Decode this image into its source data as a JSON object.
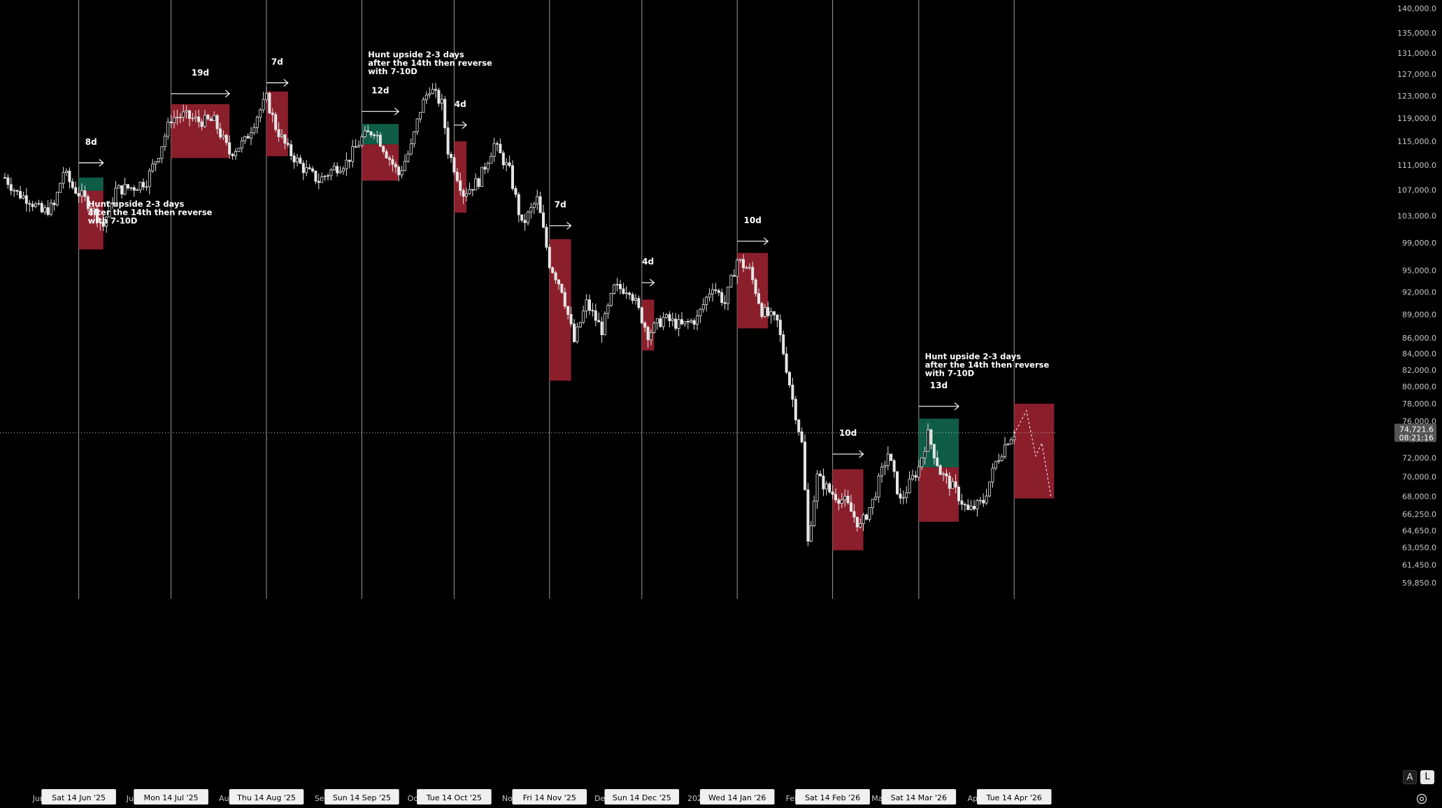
{
  "chart_data": {
    "type": "candlestick",
    "title": "",
    "xlabel": "",
    "ylabel": "",
    "x_start": "2025-05-21",
    "x_end": "2026-04-30",
    "ylim": [
      59850,
      140000
    ],
    "y_scale": "log",
    "y_ticks": [
      59850,
      61450,
      63050,
      64650,
      66250,
      68000,
      70000,
      72000,
      74000,
      76000,
      78000,
      80000,
      82000,
      84000,
      86000,
      89000,
      92000,
      95000,
      99000,
      103000,
      107000,
      111000,
      115000,
      119000,
      123000,
      127000,
      131000,
      135000,
      140000
    ],
    "y_tick_labels": [
      "59,850.0",
      "61,450.0",
      "63,050.0",
      "64,650.0",
      "66,250.0",
      "68,000.0",
      "70,000.0",
      "72,000.0",
      "74,000.0",
      "76,000.0",
      "78,000.0",
      "80,000.0",
      "82,000.0",
      "84,000.0",
      "86,000.0",
      "89,000.0",
      "92,000.0",
      "95,000.0",
      "99,000.0",
      "103,000.0",
      "107,000.0",
      "111,000.0",
      "115,000.0",
      "119,000.0",
      "123,000.0",
      "127,000.0",
      "131,000.0",
      "135,000.0",
      "140,000.0"
    ],
    "x_month_ticks": [
      {
        "date": "2025-06-01",
        "label": "Jun"
      },
      {
        "date": "2025-07-01",
        "label": "Jul"
      },
      {
        "date": "2025-08-01",
        "label": "Aug"
      },
      {
        "date": "2025-09-01",
        "label": "Sep"
      },
      {
        "date": "2025-10-01",
        "label": "Oct"
      },
      {
        "date": "2025-11-01",
        "label": "Nov"
      },
      {
        "date": "2025-12-01",
        "label": "Dec"
      },
      {
        "date": "2026-01-01",
        "label": "2026"
      },
      {
        "date": "2026-02-01",
        "label": "Feb"
      },
      {
        "date": "2026-03-01",
        "label": "Mar"
      },
      {
        "date": "2026-04-01",
        "label": "Apr"
      }
    ],
    "x_date_markers": [
      {
        "date": "2025-06-14",
        "label": "Sat 14 Jun '25"
      },
      {
        "date": "2025-07-14",
        "label": "Mon 14 Jul '25"
      },
      {
        "date": "2025-08-14",
        "label": "Thu 14 Aug '25"
      },
      {
        "date": "2025-09-14",
        "label": "Sun 14 Sep '25"
      },
      {
        "date": "2025-10-14",
        "label": "Tue 14 Oct '25"
      },
      {
        "date": "2025-11-14",
        "label": "Fri 14 Nov '25"
      },
      {
        "date": "2025-12-14",
        "label": "Sun 14 Dec '25"
      },
      {
        "date": "2026-01-14",
        "label": "Wed 14 Jan '26"
      },
      {
        "date": "2026-02-14",
        "label": "Sat 14 Feb '26"
      },
      {
        "date": "2026-03-14",
        "label": "Sat 14 Mar '26"
      },
      {
        "date": "2026-04-14",
        "label": "Tue 14 Apr '26"
      }
    ],
    "current_price": {
      "value": 74721.6,
      "label": "74,721.6",
      "countdown": "08:21:16"
    },
    "zones": [
      {
        "start": "2025-06-14",
        "end": "2025-06-22",
        "green": [
          106900,
          109000
        ],
        "red": [
          98000,
          106900
        ],
        "duration_label": "8d",
        "arrow_y": 111400
      },
      {
        "start": "2025-07-14",
        "end": "2025-08-02",
        "green": null,
        "red": [
          112200,
          121500
        ],
        "duration_label": "19d",
        "arrow_y": 123400
      },
      {
        "start": "2025-08-14",
        "end": "2025-08-21",
        "green": null,
        "red": [
          112500,
          123800
        ],
        "duration_label": "7d",
        "arrow_y": 125400
      },
      {
        "start": "2025-09-14",
        "end": "2025-09-26",
        "green": [
          114500,
          118000
        ],
        "red": [
          108500,
          114500
        ],
        "duration_label": "12d",
        "arrow_y": 120200
      },
      {
        "start": "2025-10-14",
        "end": "2025-10-18",
        "green": null,
        "red": [
          103500,
          115000
        ],
        "duration_label": "4d",
        "arrow_y": 117800
      },
      {
        "start": "2025-11-14",
        "end": "2025-11-21",
        "green": null,
        "red": [
          80700,
          99500
        ],
        "duration_label": "7d",
        "arrow_y": 101500
      },
      {
        "start": "2025-12-14",
        "end": "2025-12-18",
        "green": null,
        "red": [
          84400,
          91000
        ],
        "duration_label": "4d",
        "arrow_y": 93300
      },
      {
        "start": "2026-01-14",
        "end": "2026-01-24",
        "green": null,
        "red": [
          87200,
          97500
        ],
        "duration_label": "10d",
        "arrow_y": 99200
      },
      {
        "start": "2026-02-14",
        "end": "2026-02-24",
        "green": null,
        "red": [
          62800,
          70800
        ],
        "duration_label": "10d",
        "arrow_y": 72400
      },
      {
        "start": "2026-03-14",
        "end": "2026-03-27",
        "green": [
          71000,
          76300
        ],
        "red": [
          65500,
          71000
        ],
        "duration_label": "13d",
        "arrow_y": 77700
      },
      {
        "start": "2026-04-14",
        "end": "2026-04-27",
        "green": null,
        "red": [
          67800,
          78000
        ],
        "duration_label": "",
        "arrow_y": null
      }
    ],
    "annotations": [
      {
        "lines": [
          "Hunt upside 2-3 days",
          "after the 14th then reverse",
          "with 7-10D"
        ],
        "date": "2025-06-17",
        "y": 104400
      },
      {
        "lines": [
          "Hunt upside 2-3 days",
          "after the 14th then reverse",
          "with 7-10D"
        ],
        "date": "2025-09-16",
        "y": 130200
      },
      {
        "lines": [
          "Hunt upside 2-3 days",
          "after the 14th then reverse",
          "with 7-10D"
        ],
        "date": "2026-03-16",
        "y": 83300
      }
    ],
    "projection": [
      {
        "date": "2026-04-14",
        "value": 74600
      },
      {
        "date": "2026-04-18",
        "value": 77200
      },
      {
        "date": "2026-04-21",
        "value": 72200
      },
      {
        "date": "2026-04-23",
        "value": 73600
      },
      {
        "date": "2026-04-26",
        "value": 67900
      }
    ],
    "price_path": [
      {
        "date": "2025-05-21",
        "value": 109000
      },
      {
        "date": "2025-05-25",
        "value": 106500
      },
      {
        "date": "2025-05-29",
        "value": 105500
      },
      {
        "date": "2025-06-02",
        "value": 103500
      },
      {
        "date": "2025-06-06",
        "value": 104500
      },
      {
        "date": "2025-06-09",
        "value": 110000
      },
      {
        "date": "2025-06-12",
        "value": 107500
      },
      {
        "date": "2025-06-17",
        "value": 105000
      },
      {
        "date": "2025-06-22",
        "value": 101500
      },
      {
        "date": "2025-06-26",
        "value": 107000
      },
      {
        "date": "2025-07-02",
        "value": 107500
      },
      {
        "date": "2025-07-06",
        "value": 108500
      },
      {
        "date": "2025-07-10",
        "value": 113000
      },
      {
        "date": "2025-07-14",
        "value": 119000
      },
      {
        "date": "2025-07-18",
        "value": 119500
      },
      {
        "date": "2025-07-23",
        "value": 118500
      },
      {
        "date": "2025-07-28",
        "value": 118500
      },
      {
        "date": "2025-08-02",
        "value": 113000
      },
      {
        "date": "2025-08-07",
        "value": 115000
      },
      {
        "date": "2025-08-11",
        "value": 119500
      },
      {
        "date": "2025-08-14",
        "value": 122500
      },
      {
        "date": "2025-08-17",
        "value": 117500
      },
      {
        "date": "2025-08-21",
        "value": 113500
      },
      {
        "date": "2025-08-26",
        "value": 110500
      },
      {
        "date": "2025-08-31",
        "value": 108500
      },
      {
        "date": "2025-09-05",
        "value": 110500
      },
      {
        "date": "2025-09-09",
        "value": 111500
      },
      {
        "date": "2025-09-14",
        "value": 115500
      },
      {
        "date": "2025-09-18",
        "value": 117000
      },
      {
        "date": "2025-09-22",
        "value": 113000
      },
      {
        "date": "2025-09-26",
        "value": 109500
      },
      {
        "date": "2025-09-30",
        "value": 114000
      },
      {
        "date": "2025-10-03",
        "value": 120500
      },
      {
        "date": "2025-10-06",
        "value": 124500
      },
      {
        "date": "2025-10-10",
        "value": 121500
      },
      {
        "date": "2025-10-12",
        "value": 113500
      },
      {
        "date": "2025-10-17",
        "value": 106500
      },
      {
        "date": "2025-10-22",
        "value": 108500
      },
      {
        "date": "2025-10-27",
        "value": 114500
      },
      {
        "date": "2025-11-01",
        "value": 110000
      },
      {
        "date": "2025-11-05",
        "value": 101500
      },
      {
        "date": "2025-11-10",
        "value": 105500
      },
      {
        "date": "2025-11-14",
        "value": 96000
      },
      {
        "date": "2025-11-18",
        "value": 92500
      },
      {
        "date": "2025-11-22",
        "value": 85500
      },
      {
        "date": "2025-11-26",
        "value": 90500
      },
      {
        "date": "2025-12-01",
        "value": 87000
      },
      {
        "date": "2025-12-05",
        "value": 92500
      },
      {
        "date": "2025-12-10",
        "value": 92500
      },
      {
        "date": "2025-12-16",
        "value": 86500
      },
      {
        "date": "2025-12-21",
        "value": 88500
      },
      {
        "date": "2025-12-27",
        "value": 87500
      },
      {
        "date": "2026-01-01",
        "value": 88500
      },
      {
        "date": "2026-01-06",
        "value": 93000
      },
      {
        "date": "2026-01-10",
        "value": 90500
      },
      {
        "date": "2026-01-14",
        "value": 96500
      },
      {
        "date": "2026-01-18",
        "value": 95000
      },
      {
        "date": "2026-01-22",
        "value": 89500
      },
      {
        "date": "2026-01-27",
        "value": 88000
      },
      {
        "date": "2026-02-01",
        "value": 78500
      },
      {
        "date": "2026-02-04",
        "value": 73500
      },
      {
        "date": "2026-02-06",
        "value": 63500
      },
      {
        "date": "2026-02-09",
        "value": 70000
      },
      {
        "date": "2026-02-13",
        "value": 68500
      },
      {
        "date": "2026-02-18",
        "value": 67500
      },
      {
        "date": "2026-02-23",
        "value": 65000
      },
      {
        "date": "2026-02-27",
        "value": 67500
      },
      {
        "date": "2026-03-04",
        "value": 72500
      },
      {
        "date": "2026-03-08",
        "value": 67500
      },
      {
        "date": "2026-03-14",
        "value": 71000
      },
      {
        "date": "2026-03-17",
        "value": 74500
      },
      {
        "date": "2026-03-21",
        "value": 70500
      },
      {
        "date": "2026-03-26",
        "value": 68500
      },
      {
        "date": "2026-03-30",
        "value": 66500
      },
      {
        "date": "2026-04-04",
        "value": 67500
      },
      {
        "date": "2026-04-08",
        "value": 71500
      },
      {
        "date": "2026-04-12",
        "value": 74000
      },
      {
        "date": "2026-04-14",
        "value": 74700
      }
    ]
  },
  "colors": {
    "background": "#000000",
    "candle": "#e6e6e6",
    "grid_marker": "#9a9a9a",
    "zone_red": "#8b1e2b",
    "zone_green": "#0f5c47",
    "annotation": "#ffffff",
    "axis_text": "#c8c8c8",
    "price_tag_bg": "#555555"
  },
  "ui": {
    "auto_scale_label": "A",
    "log_scale_label": "L",
    "settings_icon": "gear-icon"
  }
}
